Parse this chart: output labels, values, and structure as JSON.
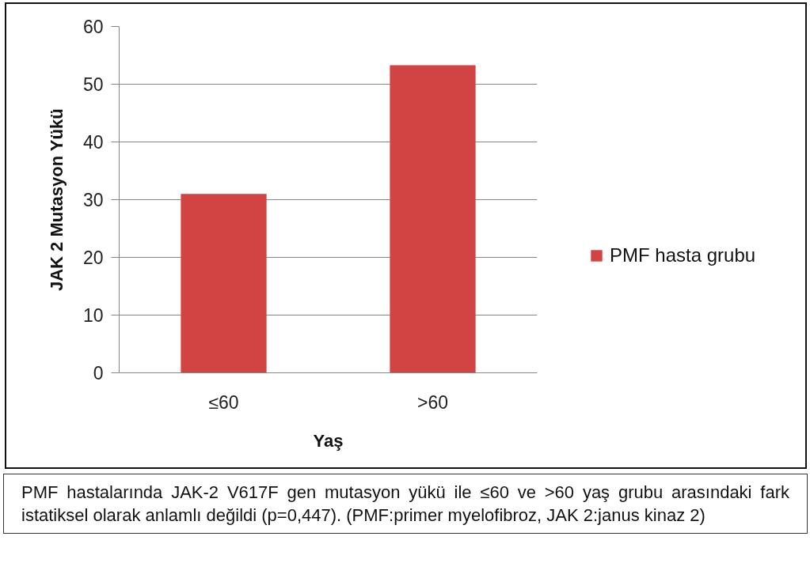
{
  "chart_data": {
    "type": "bar",
    "xlabel": "Yaş",
    "ylabel": "JAK 2 Mutasyon Yükü",
    "categories": [
      "≤60",
      ">60"
    ],
    "series": [
      {
        "name": "PMF hasta grubu",
        "color": "#d24343",
        "values": [
          31,
          53.3
        ]
      }
    ],
    "ylim": [
      0,
      60
    ],
    "yticks": [
      0,
      10,
      20,
      30,
      40,
      50,
      60
    ],
    "grid": "y",
    "legend": "right",
    "annotations": [
      "PMF hastalarında JAK-2 V617F gen mutasyon yükü ile ≤60 ve >60 yaş grubu arasındaki fark istatiksel olarak anlamlı değildi (p=0,447). (PMF:primer myelofibroz, JAK 2:janus kinaz 2)"
    ]
  }
}
